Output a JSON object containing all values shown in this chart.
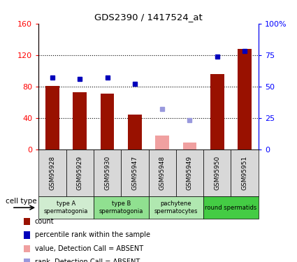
{
  "title": "GDS2390 / 1417524_at",
  "samples": [
    "GSM95928",
    "GSM95929",
    "GSM95930",
    "GSM95947",
    "GSM95948",
    "GSM95949",
    "GSM95950",
    "GSM95951"
  ],
  "counts": [
    81,
    73,
    71,
    44,
    18,
    9,
    96,
    128
  ],
  "percentiles": [
    57,
    56,
    57,
    52,
    32,
    23,
    74,
    78
  ],
  "absent": [
    false,
    false,
    false,
    false,
    true,
    true,
    false,
    false
  ],
  "cell_types": [
    {
      "label": "type A\nspermatogonia",
      "span": [
        0,
        2
      ],
      "color": "#d0ecd0"
    },
    {
      "label": "type B\nspermatogonia",
      "span": [
        2,
        4
      ],
      "color": "#90e090"
    },
    {
      "label": "pachytene\nspermatocytes",
      "span": [
        4,
        6
      ],
      "color": "#b0e8b0"
    },
    {
      "label": "round spermatids",
      "span": [
        6,
        8
      ],
      "color": "#44cc44"
    }
  ],
  "bar_width": 0.5,
  "count_color_present": "#991100",
  "count_color_absent": "#f0a0a0",
  "percentile_color_present": "#0000bb",
  "percentile_color_absent": "#9999dd",
  "left_ylim": [
    0,
    160
  ],
  "right_ylim": [
    0,
    100
  ],
  "left_yticks": [
    0,
    40,
    80,
    120,
    160
  ],
  "right_yticks": [
    0,
    25,
    50,
    75,
    100
  ],
  "right_yticklabels": [
    "0",
    "25",
    "50",
    "75",
    "100%"
  ],
  "dotted_lines": [
    40,
    80,
    120
  ],
  "legend_items": [
    {
      "label": "count",
      "color": "#991100"
    },
    {
      "label": "percentile rank within the sample",
      "color": "#0000bb"
    },
    {
      "label": "value, Detection Call = ABSENT",
      "color": "#f0a0a0"
    },
    {
      "label": "rank, Detection Call = ABSENT",
      "color": "#9999dd"
    }
  ]
}
